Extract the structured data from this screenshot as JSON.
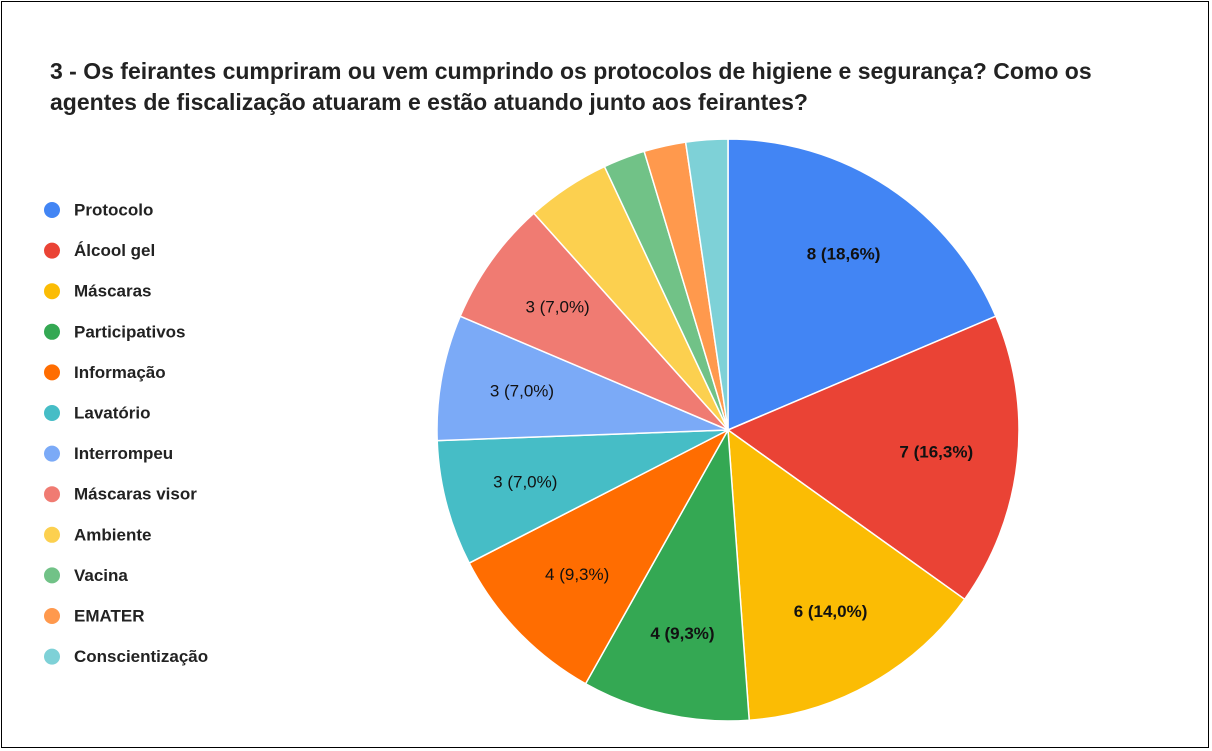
{
  "chart_data": {
    "type": "pie",
    "title": "3 - Os feirantes cumpriram ou vem cumprindo os protocolos de higiene e segurança? Como os agentes de fiscalização atuaram e estão atuando junto aos feirantes?",
    "categories": [
      "Protocolo",
      "Álcool gel",
      "Máscaras",
      "Participativos",
      "Informação",
      "Lavatório",
      "Interrompeu",
      "Máscaras visor",
      "Ambiente",
      "Vacina",
      "EMATER",
      "Conscientização"
    ],
    "values": [
      8,
      7,
      6,
      4,
      4,
      3,
      3,
      3,
      2,
      1,
      1,
      1
    ],
    "value_labels": [
      "8 (18,6%)",
      "7 (16,3%)",
      "6 (14,0%)",
      "4 (9,3%)",
      "4 (9,3%)",
      "3 (7,0%)",
      "3 (7,0%)",
      "3 (7,0%)",
      null,
      null,
      null,
      null
    ],
    "colors": [
      "#4285f4",
      "#ea4335",
      "#fbbc04",
      "#34a853",
      "#ff6d01",
      "#46bdc6",
      "#7baaf7",
      "#f07b72",
      "#fcd04f",
      "#71c287",
      "#ff994d",
      "#7ed1d7"
    ],
    "legend": "left"
  }
}
